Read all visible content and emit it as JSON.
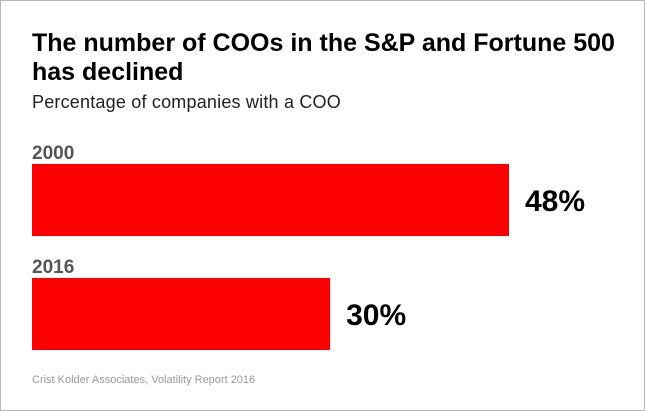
{
  "chart_data": {
    "type": "bar",
    "orientation": "horizontal",
    "title": "The number of COOs in the S&P and Fortune 500 has declined",
    "subtitle": "Percentage of companies with a COO",
    "categories": [
      "2000",
      "2016"
    ],
    "values": [
      48,
      30
    ],
    "value_labels": [
      "48%",
      "30%"
    ],
    "unit": "%",
    "source": "Crist Kolder Associates, Volatility Report 2016",
    "bar_color": "#ff0000"
  }
}
